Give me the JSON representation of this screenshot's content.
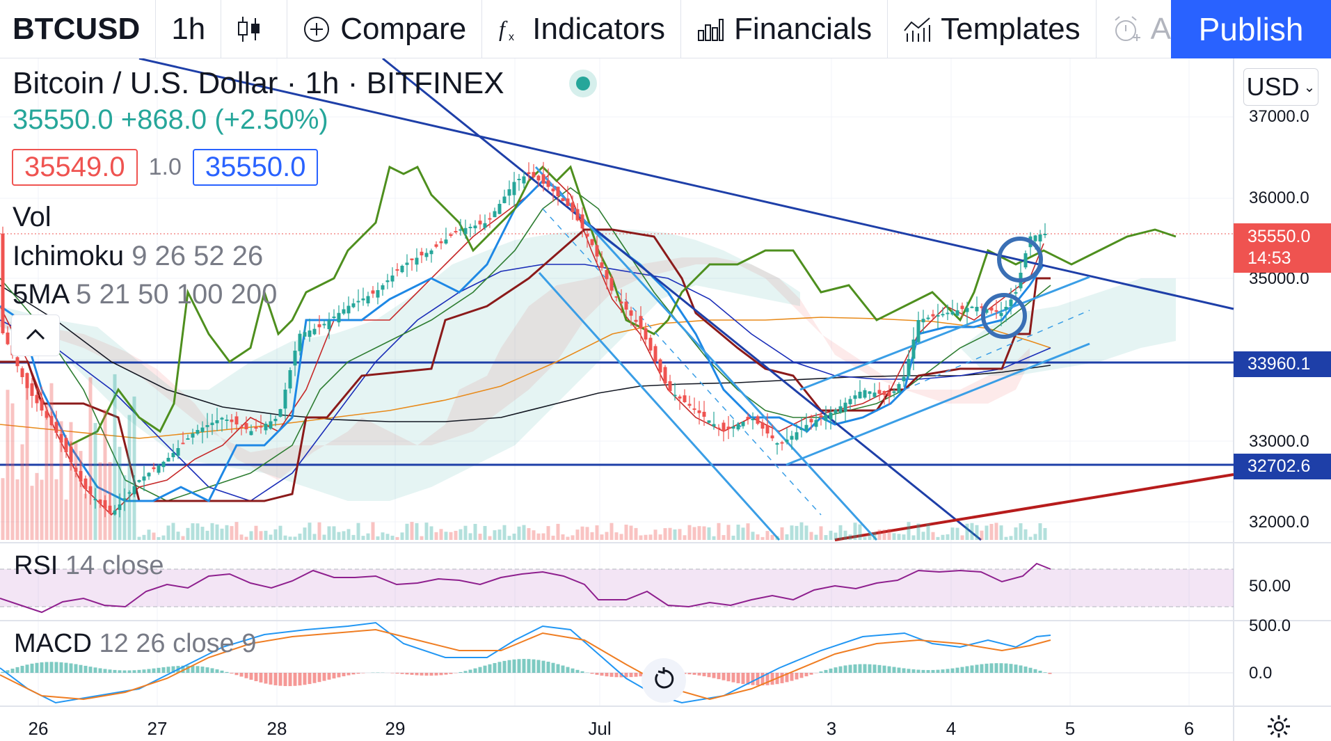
{
  "toolbar": {
    "symbol": "BTCUSD",
    "interval": "1h",
    "compare_label": "Compare",
    "indicators_label": "Indicators",
    "financials_label": "Financials",
    "templates_label": "Templates",
    "alert_label": "A",
    "publish_label": "Publish"
  },
  "header": {
    "title": "Bitcoin / U.S. Dollar · 1h · BITFINEX",
    "last_price": "35550.0",
    "change": "+868.0",
    "change_pct": "(+2.50%)",
    "bid": "35549.0",
    "spread": "1.0",
    "ask": "35550.0"
  },
  "legend": {
    "vol": "Vol",
    "ichimoku_name": "Ichimoku",
    "ichimoku_params": "9 26 52 26",
    "ma_name": "5MA",
    "ma_params": "5 21 50 100 200"
  },
  "currency": "USD",
  "price_axis": {
    "ticks": [
      "37000.0",
      "36000.0",
      "35000.0",
      "33000.0",
      "32000.0"
    ],
    "current_price": "35550.0",
    "countdown": "14:53",
    "line_1": "33960.1",
    "line_2": "32702.6"
  },
  "rsi": {
    "name": "RSI",
    "params": "14 close",
    "tick_top": "50.00"
  },
  "macd": {
    "name": "MACD",
    "params": "12 26 close 9",
    "tick_top": "500.0",
    "tick_zero": "0.0"
  },
  "time_axis": [
    "26",
    "27",
    "28",
    "29",
    "Jul",
    "3",
    "4",
    "5",
    "6"
  ],
  "colors": {
    "accent": "#2962ff",
    "up": "#26a69a",
    "down": "#ef5350",
    "trend_line": "#1e3fa8",
    "channel": "#3a9ee6",
    "support": "#b71c1c",
    "lagging_span": "#4e8f1e",
    "rsi": "#8e1f8e"
  },
  "icons": [
    "candles-icon",
    "plus-circle-icon",
    "fx-icon",
    "financials-icon",
    "templates-icon",
    "alarm-icon",
    "chevron-up-icon",
    "gear-icon",
    "replay-icon"
  ]
}
